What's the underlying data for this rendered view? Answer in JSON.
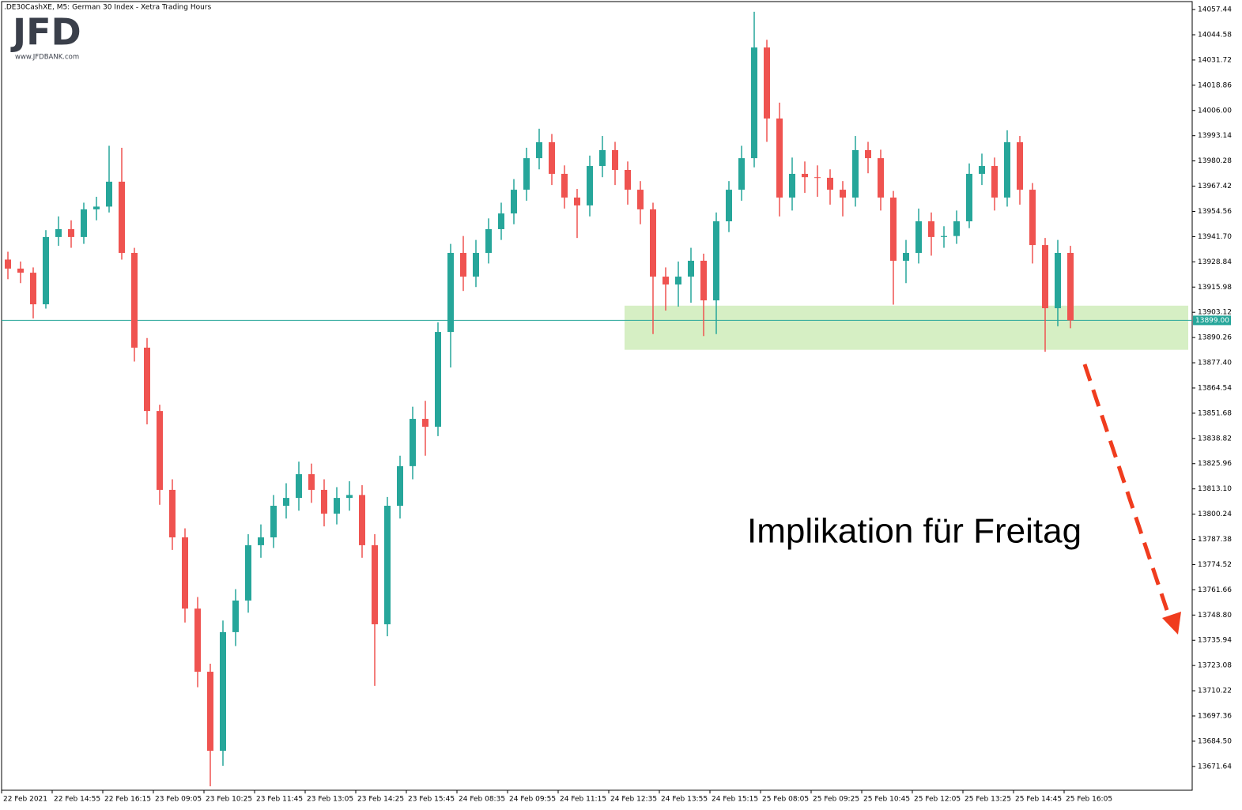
{
  "chart_data": {
    "type": "candlestick",
    "title": ".DE30CashXE, M5:  German 30 Index  - Xetra Trading Hours",
    "logo": "JFD",
    "logo_url": "www.JFDBANK.com",
    "annotation": "Implikation für Freitag",
    "bull_color": "#26a69a",
    "bear_color": "#ef5350",
    "zone_color": "#d6efc4",
    "ylim": [
      13659.5,
      14061.5
    ],
    "yticks": [
      14057.44,
      14044.58,
      14031.72,
      14018.86,
      {
        "value": 14006,
        "label": "14006.00"
      },
      13993.14,
      13980.28,
      13967.42,
      13954.56,
      {
        "value": 13941.7,
        "label": "13941.70"
      },
      13928.84,
      13915.98,
      13903.12,
      13890.26,
      {
        "value": 13877.4,
        "label": "13877.40"
      },
      13864.54,
      13851.68,
      13838.82,
      13825.96,
      {
        "value": 13813.1,
        "label": "13813.10"
      },
      13800.24,
      13787.38,
      13774.52,
      13761.66,
      {
        "value": 13748.8,
        "label": "13748.80"
      },
      13735.94,
      13723.08,
      13710.22,
      13697.36,
      {
        "value": 13684.5,
        "label": "13684.50"
      },
      13671.64
    ],
    "current_price": {
      "value": 13899,
      "label": "13899.00"
    },
    "zone": {
      "low": 13884,
      "high": 13906.5,
      "start": 49
    },
    "categories": [
      "22 Feb 2021",
      null,
      null,
      null,
      "22 Feb 14:55",
      null,
      null,
      null,
      "22 Feb 16:15",
      null,
      null,
      null,
      "23 Feb 09:05",
      null,
      null,
      null,
      "23 Feb 10:25",
      null,
      null,
      null,
      "23 Feb 11:45",
      null,
      null,
      null,
      "23 Feb 13:05",
      null,
      null,
      null,
      "23 Feb 14:25",
      null,
      null,
      null,
      "23 Feb 15:45",
      null,
      null,
      null,
      "24 Feb 08:35",
      null,
      null,
      null,
      "24 Feb 09:55",
      null,
      null,
      null,
      "24 Feb 11:15",
      null,
      null,
      null,
      "24 Feb 12:35",
      null,
      null,
      null,
      "24 Feb 13:55",
      null,
      null,
      null,
      "24 Feb 15:15",
      null,
      null,
      null,
      "25 Feb 08:05",
      null,
      null,
      null,
      "25 Feb 09:25",
      null,
      null,
      null,
      "25 Feb 10:45",
      null,
      null,
      null,
      "25 Feb 12:05",
      null,
      null,
      null,
      "25 Feb 13:25",
      null,
      null,
      null,
      "25 Feb 14:45",
      null,
      null,
      null,
      "25 Feb 16:05"
    ],
    "open": [
      13930.0,
      13925.4,
      13923.3,
      13907.2,
      13941.5,
      13945.5,
      13941.5,
      13955.6,
      13957.0,
      13969.7,
      13933.4,
      13885.1,
      13852.8,
      13812.6,
      13788.4,
      13752.1,
      13719.9,
      13679.6,
      13740.1,
      13756.2,
      13784.4,
      13788.4,
      13804.5,
      13808.5,
      13820.6,
      13812.6,
      13800.5,
      13808.5,
      13810.0,
      13784.4,
      13744.1,
      13804.5,
      13824.7,
      13848.8,
      13844.8,
      13893.1,
      13933.4,
      13921.3,
      13933.4,
      13945.5,
      13953.5,
      13965.6,
      13981.7,
      13989.8,
      13973.7,
      13961.6,
      13957.6,
      13977.7,
      13985.8,
      13975.7,
      13965.6,
      13955.6,
      13921.3,
      13917.3,
      13921.3,
      13929.4,
      13909.2,
      13949.5,
      13965.6,
      13981.7,
      14038.1,
      14001.9,
      13961.6,
      13973.7,
      13972.0,
      13971.7,
      13965.6,
      13961.6,
      13985.8,
      13981.7,
      13961.6,
      13929.4,
      13933.4,
      13949.5,
      13941.5,
      13942.0,
      13949.5,
      13973.7,
      13977.7,
      13961.6,
      13989.8,
      13965.6,
      13937.4,
      13905.2,
      13933.4
    ],
    "high": [
      13934,
      13929,
      13926,
      13945,
      13952,
      13950,
      13959,
      13962,
      13988,
      13987,
      13936,
      13890,
      13856,
      13818,
      13793,
      13758,
      13724,
      13746,
      13762,
      13790,
      13795,
      13810,
      13816,
      13827,
      13826,
      13818,
      13814,
      13817,
      13815,
      13790,
      13809,
      13830,
      13855,
      13858,
      13898,
      13938,
      13942,
      13940,
      13951,
      13959,
      13971,
      13987,
      13996.7,
      13994,
      13978,
      13966,
      13983,
      13993,
      13990,
      13980,
      13970,
      13959,
      13926,
      13929,
      13936,
      13933,
      13954,
      13970,
      13988,
      14056.3,
      14042,
      14010,
      13982,
      13980,
      13978,
      13976,
      13970,
      13993,
      13990,
      13986,
      13965,
      13940,
      13956,
      13954,
      13947,
      13955,
      13979,
      13984,
      13982,
      13995.9,
      13993,
      13969,
      13941,
      13940,
      13937
    ],
    "low": [
      13920,
      13918,
      13900,
      13905,
      13937,
      13936,
      13938,
      13950,
      13954,
      13930,
      13878,
      13846,
      13805,
      13782,
      13745,
      13712,
      13661.5,
      13672,
      13733,
      13750,
      13778,
      13783,
      13798,
      13802,
      13806,
      13794,
      13795,
      13802,
      13778,
      13712.7,
      13738,
      13798,
      13818,
      13830,
      13840,
      13875,
      13914,
      13916,
      13928,
      13940,
      13948,
      13960,
      13976,
      13968,
      13956,
      13941,
      13952,
      13972,
      13968,
      13958,
      13948,
      13892,
      13904,
      13906,
      13908,
      13891,
      13892,
      13944,
      13960,
      13977,
      13990,
      13952,
      13955,
      13964,
      13962,
      13958,
      13952,
      13957,
      13974,
      13955,
      13907,
      13918,
      13928,
      13932,
      13936,
      13938,
      13946,
      13968,
      13955,
      13957,
      13958,
      13928,
      13883,
      13896,
      13895
    ],
    "close": [
      13925.4,
      13923.3,
      13907.2,
      13941.5,
      13945.5,
      13941.5,
      13955.6,
      13957.0,
      13969.7,
      13933.4,
      13885.1,
      13852.8,
      13812.6,
      13788.4,
      13752.1,
      13719.9,
      13679.6,
      13740.1,
      13756.2,
      13784.4,
      13788.4,
      13804.5,
      13808.5,
      13820.6,
      13812.6,
      13800.5,
      13808.5,
      13810.0,
      13784.4,
      13744.1,
      13804.5,
      13824.7,
      13848.8,
      13844.8,
      13893.1,
      13933.4,
      13921.3,
      13933.4,
      13945.5,
      13953.5,
      13965.6,
      13981.7,
      13989.8,
      13973.7,
      13961.6,
      13957.6,
      13977.7,
      13985.8,
      13975.7,
      13965.6,
      13955.6,
      13921.3,
      13917.3,
      13921.3,
      13929.4,
      13909.2,
      13949.5,
      13965.6,
      13981.7,
      14038.1,
      14001.9,
      13961.6,
      13973.7,
      13972.0,
      13971.7,
      13965.6,
      13961.6,
      13985.8,
      13981.7,
      13961.6,
      13929.4,
      13933.4,
      13949.5,
      13941.5,
      13942.0,
      13949.5,
      13973.7,
      13977.7,
      13961.6,
      13989.8,
      13965.6,
      13937.4,
      13905.2,
      13933.4,
      13899.0
    ]
  }
}
